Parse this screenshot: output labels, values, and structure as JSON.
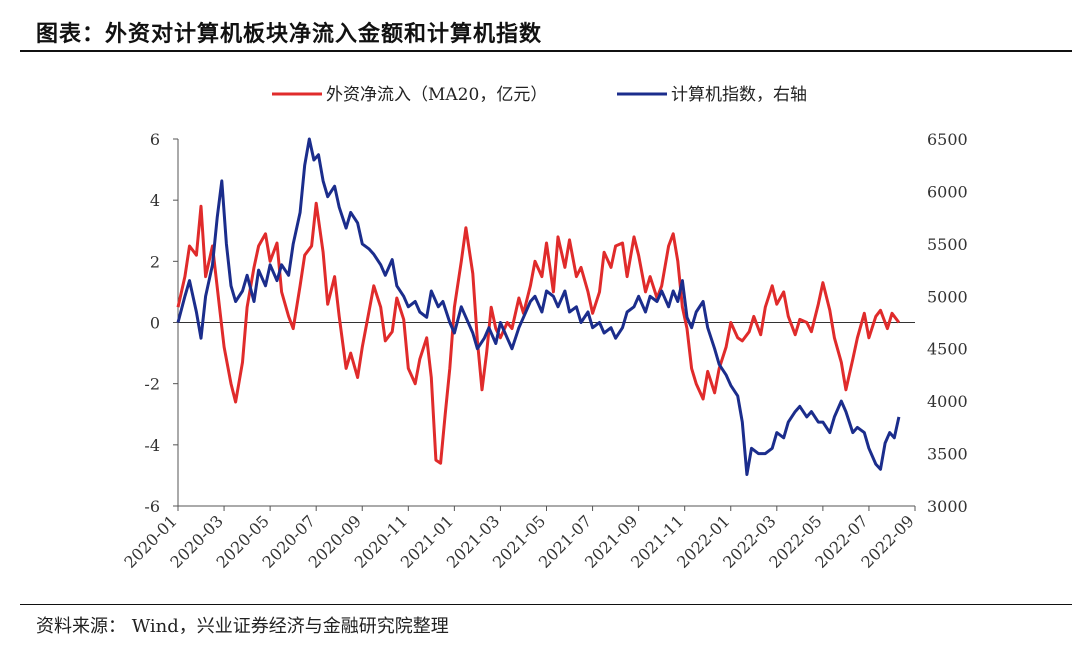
{
  "header": {
    "title": "图表：外资对计算机板块净流入金额和计算机指数"
  },
  "footer": {
    "source": "资料来源： Wind，兴业证券经济与金融研究院整理"
  },
  "chart_data": {
    "type": "line",
    "legend_position": "top",
    "grid": false,
    "x_ticks": [
      "2020-01",
      "2020-03",
      "2020-05",
      "2020-07",
      "2020-09",
      "2020-11",
      "2021-01",
      "2021-03",
      "2021-05",
      "2021-07",
      "2021-09",
      "2021-11",
      "2022-01",
      "2022-03",
      "2022-05",
      "2022-07",
      "2022-09"
    ],
    "y_left": {
      "ylim": [
        -6,
        6
      ],
      "ticks": [
        "-6",
        "-4",
        "-2",
        "0",
        "2",
        "4",
        "6"
      ]
    },
    "y_right": {
      "ylim": [
        3000,
        6500
      ],
      "ticks": [
        "3000",
        "3500",
        "4000",
        "4500",
        "5000",
        "5500",
        "6000",
        "6500"
      ]
    },
    "colors": {
      "foreign": "#e02b2b",
      "index": "#1b2d8c"
    },
    "series": [
      {
        "name": "外资净流入（MA20，亿元）",
        "axis": "left",
        "points": [
          [
            0,
            0.5
          ],
          [
            0.3,
            1.5
          ],
          [
            0.5,
            2.5
          ],
          [
            0.8,
            2.2
          ],
          [
            1.0,
            3.8
          ],
          [
            1.2,
            1.5
          ],
          [
            1.5,
            2.5
          ],
          [
            1.8,
            0.5
          ],
          [
            2.0,
            -0.8
          ],
          [
            2.3,
            -2.0
          ],
          [
            2.5,
            -2.6
          ],
          [
            2.8,
            -1.3
          ],
          [
            3.0,
            0.5
          ],
          [
            3.3,
            1.8
          ],
          [
            3.5,
            2.5
          ],
          [
            3.8,
            2.9
          ],
          [
            4.0,
            2.0
          ],
          [
            4.3,
            2.6
          ],
          [
            4.5,
            1.0
          ],
          [
            4.8,
            0.2
          ],
          [
            5.0,
            -0.2
          ],
          [
            5.3,
            1.2
          ],
          [
            5.5,
            2.2
          ],
          [
            5.8,
            2.5
          ],
          [
            6.0,
            3.9
          ],
          [
            6.3,
            2.3
          ],
          [
            6.5,
            0.6
          ],
          [
            6.8,
            1.5
          ],
          [
            7.0,
            0.2
          ],
          [
            7.3,
            -1.5
          ],
          [
            7.5,
            -1.0
          ],
          [
            7.8,
            -1.8
          ],
          [
            8.0,
            -0.8
          ],
          [
            8.3,
            0.4
          ],
          [
            8.5,
            1.2
          ],
          [
            8.8,
            0.5
          ],
          [
            9.0,
            -0.6
          ],
          [
            9.3,
            -0.3
          ],
          [
            9.5,
            0.8
          ],
          [
            9.8,
            0.1
          ],
          [
            10.0,
            -1.5
          ],
          [
            10.3,
            -2.0
          ],
          [
            10.5,
            -1.2
          ],
          [
            10.8,
            -0.5
          ],
          [
            11.0,
            -1.8
          ],
          [
            11.2,
            -4.5
          ],
          [
            11.4,
            -4.6
          ],
          [
            11.6,
            -3.0
          ],
          [
            11.8,
            -1.5
          ],
          [
            12.0,
            0.5
          ],
          [
            12.3,
            2.0
          ],
          [
            12.5,
            3.1
          ],
          [
            12.8,
            1.6
          ],
          [
            13.0,
            -0.6
          ],
          [
            13.2,
            -2.2
          ],
          [
            13.4,
            -1.0
          ],
          [
            13.6,
            0.5
          ],
          [
            13.8,
            -0.2
          ],
          [
            14.0,
            -0.5
          ],
          [
            14.3,
            0.0
          ],
          [
            14.5,
            -0.2
          ],
          [
            14.8,
            0.8
          ],
          [
            15.0,
            0.3
          ],
          [
            15.3,
            1.2
          ],
          [
            15.5,
            2.0
          ],
          [
            15.8,
            1.5
          ],
          [
            16.0,
            2.6
          ],
          [
            16.3,
            1.0
          ],
          [
            16.5,
            2.8
          ],
          [
            16.8,
            1.8
          ],
          [
            17.0,
            2.7
          ],
          [
            17.3,
            1.5
          ],
          [
            17.5,
            1.8
          ],
          [
            17.8,
            1.0
          ],
          [
            18.0,
            0.3
          ],
          [
            18.3,
            1.0
          ],
          [
            18.5,
            2.3
          ],
          [
            18.8,
            1.8
          ],
          [
            19.0,
            2.5
          ],
          [
            19.3,
            2.6
          ],
          [
            19.5,
            1.5
          ],
          [
            19.8,
            2.8
          ],
          [
            20.0,
            2.2
          ],
          [
            20.3,
            1.0
          ],
          [
            20.5,
            1.5
          ],
          [
            20.8,
            0.8
          ],
          [
            21.0,
            1.2
          ],
          [
            21.3,
            2.5
          ],
          [
            21.5,
            2.9
          ],
          [
            21.7,
            2.0
          ],
          [
            21.9,
            0.5
          ],
          [
            22.1,
            -0.2
          ],
          [
            22.3,
            -1.5
          ],
          [
            22.5,
            -2.0
          ],
          [
            22.8,
            -2.5
          ],
          [
            23.0,
            -1.6
          ],
          [
            23.3,
            -2.3
          ],
          [
            23.5,
            -1.5
          ],
          [
            23.8,
            -0.8
          ],
          [
            24.0,
            0.0
          ],
          [
            24.3,
            -0.5
          ],
          [
            24.5,
            -0.6
          ],
          [
            24.8,
            -0.3
          ],
          [
            25.0,
            0.2
          ],
          [
            25.3,
            -0.4
          ],
          [
            25.5,
            0.5
          ],
          [
            25.8,
            1.2
          ],
          [
            26.0,
            0.6
          ],
          [
            26.3,
            1.0
          ],
          [
            26.5,
            0.2
          ],
          [
            26.8,
            -0.4
          ],
          [
            27.0,
            0.1
          ],
          [
            27.3,
            0.0
          ],
          [
            27.5,
            -0.3
          ],
          [
            27.8,
            0.6
          ],
          [
            28.0,
            1.3
          ],
          [
            28.3,
            0.4
          ],
          [
            28.5,
            -0.5
          ],
          [
            28.8,
            -1.3
          ],
          [
            29.0,
            -2.2
          ],
          [
            29.3,
            -1.2
          ],
          [
            29.5,
            -0.5
          ],
          [
            29.8,
            0.3
          ],
          [
            30.0,
            -0.5
          ],
          [
            30.3,
            0.2
          ],
          [
            30.5,
            0.4
          ],
          [
            30.8,
            -0.2
          ],
          [
            31.0,
            0.3
          ],
          [
            31.3,
            0.0
          ]
        ]
      },
      {
        "name": "计算机指数，右轴",
        "axis": "right",
        "points": [
          [
            0,
            4750
          ],
          [
            0.3,
            5000
          ],
          [
            0.5,
            5150
          ],
          [
            0.8,
            4850
          ],
          [
            1.0,
            4600
          ],
          [
            1.2,
            5000
          ],
          [
            1.5,
            5300
          ],
          [
            1.7,
            5750
          ],
          [
            1.9,
            6100
          ],
          [
            2.1,
            5500
          ],
          [
            2.3,
            5100
          ],
          [
            2.5,
            4950
          ],
          [
            2.8,
            5050
          ],
          [
            3.0,
            5200
          ],
          [
            3.3,
            4950
          ],
          [
            3.5,
            5250
          ],
          [
            3.8,
            5100
          ],
          [
            4.0,
            5300
          ],
          [
            4.3,
            5150
          ],
          [
            4.5,
            5300
          ],
          [
            4.8,
            5200
          ],
          [
            5.0,
            5500
          ],
          [
            5.3,
            5800
          ],
          [
            5.5,
            6250
          ],
          [
            5.7,
            6600
          ],
          [
            5.9,
            6300
          ],
          [
            6.1,
            6350
          ],
          [
            6.3,
            6100
          ],
          [
            6.5,
            5950
          ],
          [
            6.8,
            6050
          ],
          [
            7.0,
            5850
          ],
          [
            7.3,
            5650
          ],
          [
            7.5,
            5800
          ],
          [
            7.8,
            5700
          ],
          [
            8.0,
            5500
          ],
          [
            8.3,
            5450
          ],
          [
            8.5,
            5400
          ],
          [
            8.8,
            5300
          ],
          [
            9.0,
            5200
          ],
          [
            9.3,
            5350
          ],
          [
            9.5,
            5100
          ],
          [
            9.8,
            5000
          ],
          [
            10.0,
            4900
          ],
          [
            10.3,
            4950
          ],
          [
            10.5,
            4850
          ],
          [
            10.8,
            4800
          ],
          [
            11.0,
            5050
          ],
          [
            11.3,
            4900
          ],
          [
            11.5,
            4950
          ],
          [
            11.8,
            4750
          ],
          [
            12.0,
            4650
          ],
          [
            12.3,
            4900
          ],
          [
            12.5,
            4800
          ],
          [
            12.8,
            4650
          ],
          [
            13.0,
            4500
          ],
          [
            13.3,
            4600
          ],
          [
            13.5,
            4700
          ],
          [
            13.8,
            4550
          ],
          [
            14.0,
            4750
          ],
          [
            14.3,
            4600
          ],
          [
            14.5,
            4500
          ],
          [
            14.8,
            4700
          ],
          [
            15.0,
            4800
          ],
          [
            15.3,
            4950
          ],
          [
            15.5,
            5000
          ],
          [
            15.8,
            4850
          ],
          [
            16.0,
            5050
          ],
          [
            16.3,
            5000
          ],
          [
            16.5,
            4900
          ],
          [
            16.8,
            5050
          ],
          [
            17.0,
            4850
          ],
          [
            17.3,
            4900
          ],
          [
            17.5,
            4750
          ],
          [
            17.8,
            4850
          ],
          [
            18.0,
            4700
          ],
          [
            18.3,
            4750
          ],
          [
            18.5,
            4650
          ],
          [
            18.8,
            4700
          ],
          [
            19.0,
            4600
          ],
          [
            19.3,
            4700
          ],
          [
            19.5,
            4850
          ],
          [
            19.8,
            4900
          ],
          [
            20.0,
            5000
          ],
          [
            20.3,
            4850
          ],
          [
            20.5,
            5000
          ],
          [
            20.8,
            4950
          ],
          [
            21.0,
            5050
          ],
          [
            21.3,
            4900
          ],
          [
            21.5,
            5050
          ],
          [
            21.7,
            4950
          ],
          [
            21.9,
            5150
          ],
          [
            22.1,
            4800
          ],
          [
            22.3,
            4700
          ],
          [
            22.5,
            4850
          ],
          [
            22.8,
            4950
          ],
          [
            23.0,
            4700
          ],
          [
            23.3,
            4500
          ],
          [
            23.5,
            4350
          ],
          [
            23.8,
            4250
          ],
          [
            24.0,
            4150
          ],
          [
            24.3,
            4050
          ],
          [
            24.5,
            3800
          ],
          [
            24.7,
            3300
          ],
          [
            24.9,
            3550
          ],
          [
            25.2,
            3500
          ],
          [
            25.5,
            3500
          ],
          [
            25.8,
            3550
          ],
          [
            26.0,
            3700
          ],
          [
            26.3,
            3650
          ],
          [
            26.5,
            3800
          ],
          [
            26.8,
            3900
          ],
          [
            27.0,
            3950
          ],
          [
            27.3,
            3850
          ],
          [
            27.5,
            3900
          ],
          [
            27.8,
            3800
          ],
          [
            28.0,
            3800
          ],
          [
            28.3,
            3700
          ],
          [
            28.5,
            3850
          ],
          [
            28.8,
            4000
          ],
          [
            29.0,
            3900
          ],
          [
            29.3,
            3700
          ],
          [
            29.5,
            3750
          ],
          [
            29.8,
            3700
          ],
          [
            30.0,
            3550
          ],
          [
            30.3,
            3400
          ],
          [
            30.5,
            3350
          ],
          [
            30.7,
            3600
          ],
          [
            30.9,
            3700
          ],
          [
            31.1,
            3650
          ],
          [
            31.3,
            3850
          ]
        ]
      }
    ]
  }
}
